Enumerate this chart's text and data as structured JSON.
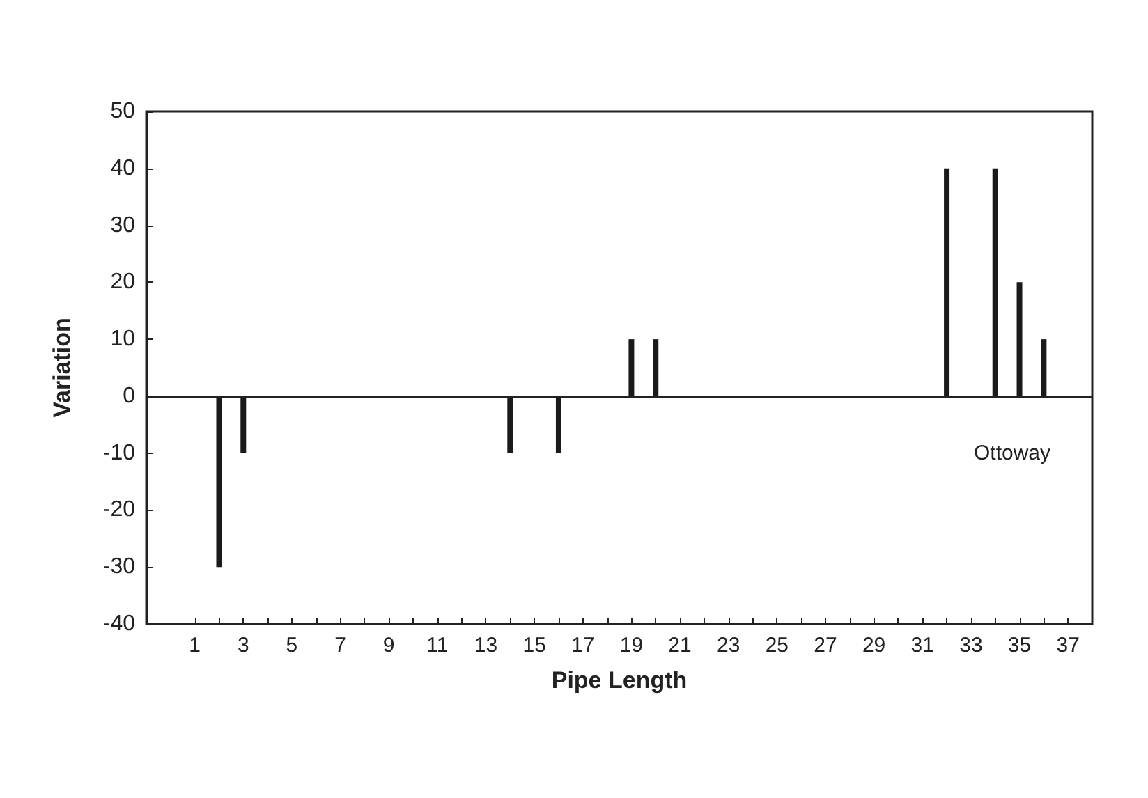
{
  "chart_data": {
    "type": "bar",
    "xlabel": "Pipe Length",
    "ylabel": "Variation",
    "x": [
      2,
      3,
      14,
      16,
      19,
      20,
      32,
      34,
      35,
      36
    ],
    "values": [
      -30,
      -10,
      -10,
      -10,
      10,
      10,
      40,
      40,
      20,
      10
    ],
    "color": "#1a1a1a",
    "xlim": [
      -1,
      38
    ],
    "xticks": [
      1,
      {
        "value": 2,
        "label": null
      },
      3,
      {
        "value": 4,
        "label": null
      },
      5,
      {
        "value": 6,
        "label": null
      },
      7,
      {
        "value": 8,
        "label": null
      },
      9,
      {
        "value": 10,
        "label": null
      },
      11,
      {
        "value": 12,
        "label": null
      },
      13,
      {
        "value": 14,
        "label": null
      },
      15,
      {
        "value": 16,
        "label": null
      },
      17,
      {
        "value": 18,
        "label": null
      },
      19,
      {
        "value": 20,
        "label": null
      },
      21,
      {
        "value": 22,
        "label": null
      },
      23,
      {
        "value": 24,
        "label": null
      },
      25,
      {
        "value": 26,
        "label": null
      },
      27,
      {
        "value": 28,
        "label": null
      },
      29,
      {
        "value": 30,
        "label": null
      },
      31,
      {
        "value": 32,
        "label": null
      },
      33,
      {
        "value": 34,
        "label": null
      },
      35,
      {
        "value": 36,
        "label": null
      },
      37
    ],
    "ylim": [
      -40,
      50
    ],
    "yticks": [
      -40,
      -30,
      -20,
      -10,
      0,
      10,
      20,
      30,
      40,
      50
    ],
    "grid": false,
    "ref_lines": [
      {
        "axis": "y",
        "value": 0
      }
    ],
    "annotations": [
      "Ottoway"
    ]
  }
}
